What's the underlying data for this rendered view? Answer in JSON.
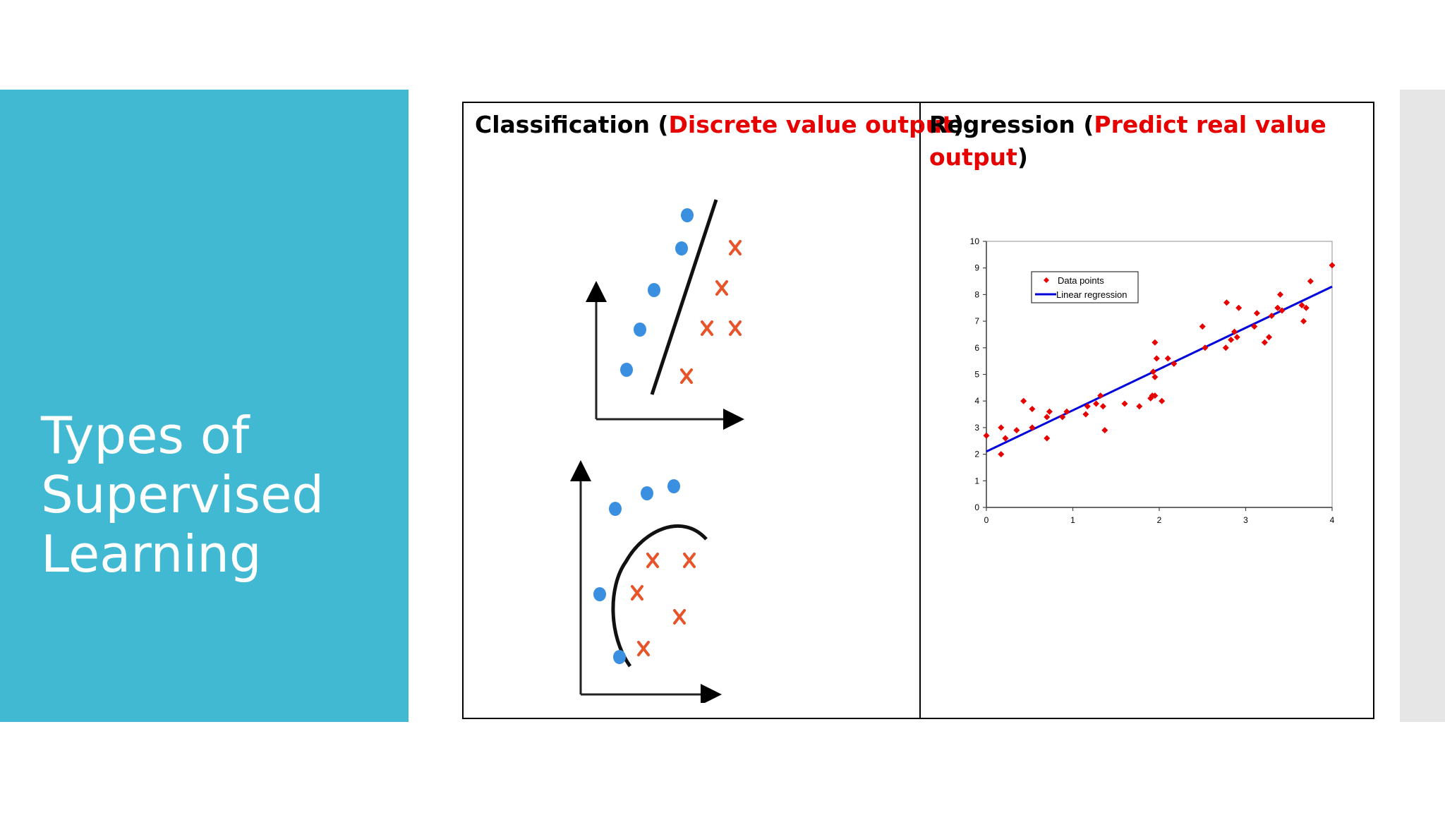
{
  "slide": {
    "title_lines": [
      "Types of",
      "Supervised",
      "Learning"
    ]
  },
  "classification": {
    "heading_prefix": "Classification (",
    "heading_highlight": "Discrete value output",
    "heading_suffix": ")"
  },
  "regression": {
    "heading_prefix": "Regression (",
    "heading_highlight": "Predict real value output",
    "heading_suffix": ")"
  },
  "colors": {
    "accent_band": "#42b9d3",
    "highlight_text": "#e60000",
    "circle_points": "#3a8fe0",
    "x_points": "#e8542a",
    "data_points": "#e60000",
    "regression_line": "#0000dd"
  },
  "chart_data": {
    "type": "scatter",
    "xlim": [
      0,
      4
    ],
    "ylim": [
      0,
      10
    ],
    "x_ticks": [
      "0",
      "1",
      "2",
      "3",
      "4"
    ],
    "y_ticks": [
      "0",
      "1",
      "2",
      "3",
      "4",
      "5",
      "6",
      "7",
      "8",
      "9",
      "10"
    ],
    "grid": false,
    "legend_position": "top-left",
    "series": [
      {
        "name": "Data points",
        "marker": "diamond",
        "points": [
          [
            0.0,
            2.7
          ],
          [
            0.17,
            2.0
          ],
          [
            0.17,
            3.0
          ],
          [
            0.22,
            2.6
          ],
          [
            0.35,
            2.9
          ],
          [
            0.43,
            4.0
          ],
          [
            0.53,
            3.7
          ],
          [
            0.53,
            3.0
          ],
          [
            0.7,
            2.6
          ],
          [
            0.7,
            3.4
          ],
          [
            0.73,
            3.6
          ],
          [
            0.88,
            3.4
          ],
          [
            0.93,
            3.6
          ],
          [
            1.15,
            3.5
          ],
          [
            1.17,
            3.8
          ],
          [
            1.27,
            3.9
          ],
          [
            1.32,
            4.2
          ],
          [
            1.35,
            3.8
          ],
          [
            1.37,
            2.9
          ],
          [
            1.6,
            3.9
          ],
          [
            1.77,
            3.8
          ],
          [
            1.9,
            4.1
          ],
          [
            1.92,
            4.2
          ],
          [
            1.93,
            5.1
          ],
          [
            1.95,
            4.2
          ],
          [
            1.95,
            4.9
          ],
          [
            1.95,
            6.2
          ],
          [
            1.97,
            5.6
          ],
          [
            2.03,
            4.0
          ],
          [
            2.1,
            5.6
          ],
          [
            2.17,
            5.4
          ],
          [
            2.5,
            6.8
          ],
          [
            2.53,
            6.0
          ],
          [
            2.77,
            6.0
          ],
          [
            2.78,
            7.7
          ],
          [
            2.83,
            6.3
          ],
          [
            2.87,
            6.6
          ],
          [
            2.9,
            6.4
          ],
          [
            2.92,
            7.5
          ],
          [
            3.1,
            6.8
          ],
          [
            3.13,
            7.3
          ],
          [
            3.22,
            6.2
          ],
          [
            3.27,
            6.4
          ],
          [
            3.3,
            7.2
          ],
          [
            3.37,
            7.5
          ],
          [
            3.4,
            8.0
          ],
          [
            3.42,
            7.4
          ],
          [
            3.65,
            7.6
          ],
          [
            3.67,
            7.0
          ],
          [
            3.7,
            7.5
          ],
          [
            3.75,
            8.5
          ],
          [
            4.0,
            9.1
          ]
        ]
      },
      {
        "name": "Linear regression",
        "marker": "line",
        "points": [
          [
            0,
            2.1
          ],
          [
            4,
            8.3
          ]
        ]
      }
    ]
  }
}
